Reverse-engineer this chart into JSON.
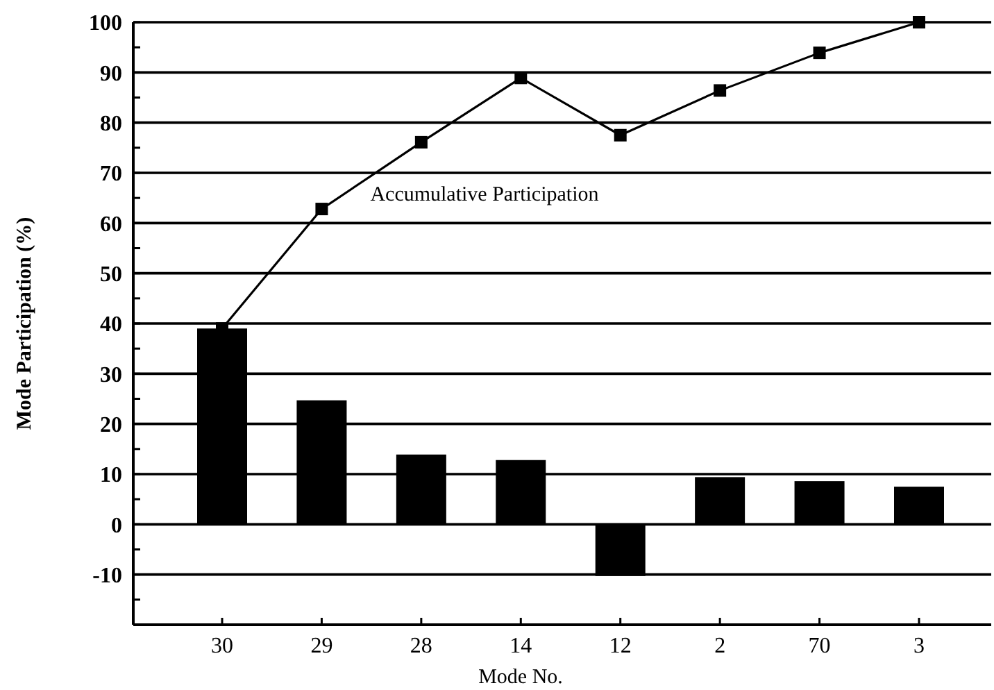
{
  "chart_data": {
    "type": "bar",
    "xlabel": "Mode No.",
    "ylabel": "Mode Participation (%)",
    "categories": [
      "30",
      "29",
      "28",
      "14",
      "12",
      "2",
      "70",
      "3"
    ],
    "series": [
      {
        "color": "#000000",
        "values": [
          39,
          24.7,
          13.9,
          12.8,
          -10.3,
          9.4,
          8.6,
          7.5
        ]
      },
      {
        "type": "line",
        "name": "Accumulative Participation",
        "color": "#000000",
        "marker": "square",
        "line_style": "solid",
        "values": [
          39,
          62.8,
          76.1,
          88.9,
          77.5,
          86.4,
          93.9,
          100
        ]
      }
    ],
    "ylim": [
      -20,
      100
    ],
    "yticks": [
      {
        "value": -15,
        "label": null
      },
      -10,
      {
        "value": -5,
        "label": null
      },
      0,
      {
        "value": 5,
        "label": null
      },
      10,
      {
        "value": 15,
        "label": null
      },
      20,
      {
        "value": 25,
        "label": null
      },
      30,
      {
        "value": 35,
        "label": null
      },
      40,
      {
        "value": 45,
        "label": null
      },
      50,
      {
        "value": 55,
        "label": null
      },
      60,
      {
        "value": 65,
        "label": null
      },
      70,
      {
        "value": 75,
        "label": null
      },
      80,
      {
        "value": 85,
        "label": null
      },
      90,
      {
        "value": 95,
        "label": null
      },
      100
    ],
    "grid": "y"
  }
}
